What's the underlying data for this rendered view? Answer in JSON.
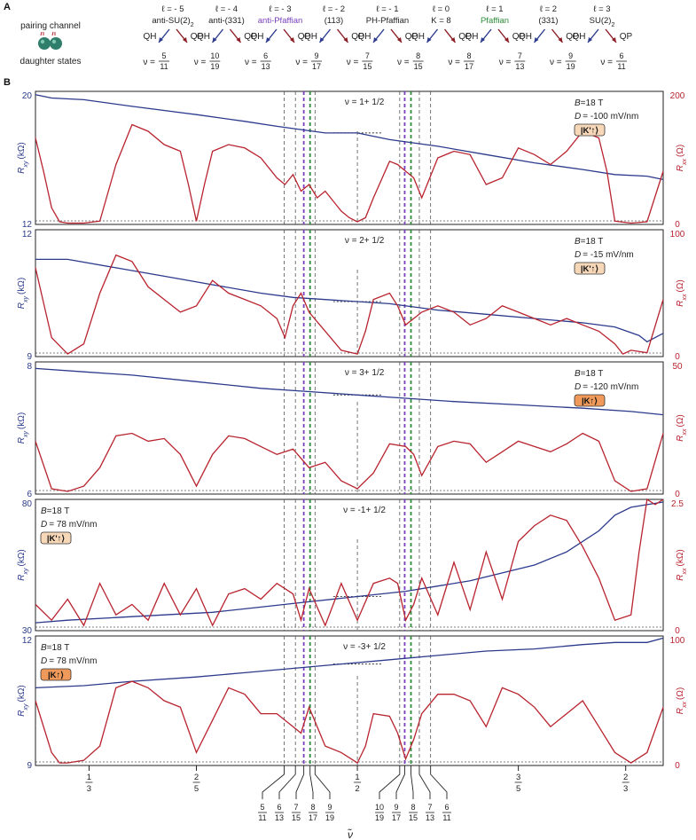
{
  "panel_a": {
    "label": "A",
    "pairing_channel": "pairing channel",
    "daughter_states": "daughter states",
    "qh": "QH",
    "qp": "QP",
    "channels": [
      {
        "l": "ℓ = - 5",
        "name": "anti-SU(2)",
        "sub": "2",
        "color": "#222222"
      },
      {
        "l": "ℓ = - 4",
        "name": "anti-(331)",
        "sub": "",
        "color": "#222222"
      },
      {
        "l": "ℓ = - 3",
        "name": "anti-Pfaffian",
        "sub": "",
        "color": "#7a3fbf"
      },
      {
        "l": "ℓ = - 2",
        "name": "(113)",
        "sub": "",
        "color": "#222222"
      },
      {
        "l": "ℓ = - 1",
        "name": "PH-Pfaffian",
        "sub": "",
        "color": "#222222"
      },
      {
        "l": "ℓ = 0",
        "name": "K = 8",
        "sub": "",
        "color": "#222222"
      },
      {
        "l": "ℓ = 1",
        "name": "Pfaffian",
        "sub": "",
        "color": "#2e8b3a"
      },
      {
        "l": "ℓ = 2",
        "name": "(331)",
        "sub": "",
        "color": "#222222"
      },
      {
        "l": "ℓ = 3",
        "name": "SU(2)",
        "sub": "2",
        "color": "#222222"
      }
    ],
    "daughters": [
      {
        "num": "5",
        "den": "11"
      },
      {
        "num": "10",
        "den": "19"
      },
      {
        "num": "6",
        "den": "13"
      },
      {
        "num": "9",
        "den": "17"
      },
      {
        "num": "7",
        "den": "15"
      },
      {
        "num": "8",
        "den": "15"
      },
      {
        "num": "8",
        "den": "17"
      },
      {
        "num": "7",
        "den": "13"
      },
      {
        "num": "9",
        "den": "19"
      },
      {
        "num": "6",
        "den": "11"
      }
    ],
    "nu": "ν ="
  },
  "panel_b_label": "B",
  "xaxis": {
    "symbol": "ν̃",
    "range": [
      0.3,
      0.69
    ],
    "major_ticks": [
      {
        "x": 0.3333,
        "num": "1",
        "den": "3"
      },
      {
        "x": 0.4,
        "num": "2",
        "den": "5"
      },
      {
        "x": 0.5,
        "num": "1",
        "den": "2"
      },
      {
        "x": 0.6,
        "num": "3",
        "den": "5"
      },
      {
        "x": 0.6667,
        "num": "2",
        "den": "3"
      }
    ],
    "fraction_lines": [
      {
        "x": 0.4545,
        "num": "5",
        "den": "11",
        "color": "#555555"
      },
      {
        "x": 0.4615,
        "num": "6",
        "den": "13",
        "color": "#555555"
      },
      {
        "x": 0.4667,
        "num": "7",
        "den": "15",
        "color": "#7a3fbf"
      },
      {
        "x": 0.4706,
        "num": "8",
        "den": "17",
        "color": "#2e8b3a"
      },
      {
        "x": 0.4737,
        "num": "9",
        "den": "19",
        "color": "#555555"
      },
      {
        "x": 0.5263,
        "num": "10",
        "den": "19",
        "color": "#555555"
      },
      {
        "x": 0.5294,
        "num": "9",
        "den": "17",
        "color": "#7a3fbf"
      },
      {
        "x": 0.5333,
        "num": "8",
        "den": "15",
        "color": "#2e8b3a"
      },
      {
        "x": 0.5385,
        "num": "7",
        "den": "13",
        "color": "#555555"
      },
      {
        "x": 0.5455,
        "num": "6",
        "den": "11",
        "color": "#555555"
      }
    ]
  },
  "chart_data": [
    {
      "type": "line",
      "title": "ν = 1+ 1/2",
      "field": "B =18 T",
      "field_label": "B",
      "field_value": "=18 T",
      "disp_label": "D",
      "disp_value": "= -100 mV/nm",
      "valley": "|K'↑⟩",
      "valley_fill": "#f6d7b8",
      "ylabel_left": "R",
      "ylabel_left_sub": "xy",
      "ylabel_left_unit": "(kΩ)",
      "ylabel_right": "R",
      "ylabel_right_sub": "xx",
      "ylabel_right_unit": "(Ω)",
      "ylim_left": [
        12,
        20
      ],
      "ylim_right": [
        0,
        200
      ],
      "left_ticks": [
        "20",
        "12"
      ],
      "right_ticks": [
        "200",
        "0"
      ],
      "info_side": "right",
      "series": [
        {
          "axis": "left",
          "color": "#2b3a8c",
          "x": [
            0.3,
            0.31,
            0.33,
            0.36,
            0.4,
            0.43,
            0.45,
            0.48,
            0.5,
            0.52,
            0.55,
            0.58,
            0.61,
            0.64,
            0.66,
            0.68,
            0.69
          ],
          "y": [
            19.8,
            19.6,
            19.5,
            19.1,
            18.6,
            18.2,
            17.9,
            17.5,
            17.5,
            17.1,
            16.7,
            16.2,
            15.7,
            15.3,
            15.0,
            14.9,
            14.7
          ]
        },
        {
          "axis": "right",
          "color": "#b8232e",
          "x": [
            0.3,
            0.305,
            0.31,
            0.315,
            0.32,
            0.33,
            0.34,
            0.35,
            0.36,
            0.37,
            0.38,
            0.39,
            0.395,
            0.4,
            0.405,
            0.41,
            0.42,
            0.43,
            0.44,
            0.45,
            0.455,
            0.46,
            0.465,
            0.47,
            0.475,
            0.48,
            0.49,
            0.495,
            0.5,
            0.505,
            0.51,
            0.52,
            0.525,
            0.53,
            0.535,
            0.54,
            0.55,
            0.56,
            0.57,
            0.58,
            0.59,
            0.6,
            0.61,
            0.62,
            0.63,
            0.64,
            0.65,
            0.655,
            0.66,
            0.67,
            0.68,
            0.69
          ],
          "y": [
            130,
            80,
            25,
            4,
            2,
            2,
            5,
            90,
            150,
            140,
            120,
            110,
            60,
            5,
            60,
            110,
            120,
            115,
            100,
            70,
            60,
            75,
            50,
            60,
            40,
            50,
            20,
            10,
            4,
            10,
            40,
            95,
            90,
            80,
            70,
            40,
            100,
            110,
            105,
            60,
            70,
            115,
            105,
            90,
            110,
            140,
            130,
            80,
            5,
            2,
            4,
            80
          ]
        }
      ],
      "plateau": {
        "x": [
          0.485,
          0.515
        ],
        "y": 17.5
      }
    },
    {
      "type": "line",
      "title": "ν = 2+ 1/2",
      "field": "B =18 T",
      "field_label": "B",
      "field_value": "=18 T",
      "disp_label": "D",
      "disp_value": "= -15 mV/nm",
      "valley": "|K'↑⟩",
      "valley_fill": "#f6d7b8",
      "ylabel_left": "R",
      "ylabel_left_sub": "xy",
      "ylabel_left_unit": "(kΩ)",
      "ylabel_right": "R",
      "ylabel_right_sub": "xx",
      "ylabel_right_unit": "(Ω)",
      "ylim_left": [
        9,
        12
      ],
      "ylim_right": [
        0,
        100
      ],
      "left_ticks": [
        "12",
        "9"
      ],
      "right_ticks": [
        "100",
        "0"
      ],
      "info_side": "right",
      "series": [
        {
          "axis": "left",
          "color": "#2b3a8c",
          "x": [
            0.3,
            0.32,
            0.35,
            0.38,
            0.41,
            0.44,
            0.46,
            0.48,
            0.5,
            0.52,
            0.55,
            0.58,
            0.61,
            0.64,
            0.66,
            0.675,
            0.68,
            0.69
          ],
          "y": [
            11.3,
            11.3,
            11.1,
            10.9,
            10.7,
            10.5,
            10.4,
            10.35,
            10.3,
            10.25,
            10.1,
            10.0,
            9.9,
            9.8,
            9.7,
            9.5,
            9.35,
            9.55
          ]
        },
        {
          "axis": "right",
          "color": "#b8232e",
          "x": [
            0.3,
            0.31,
            0.32,
            0.33,
            0.34,
            0.35,
            0.36,
            0.37,
            0.38,
            0.39,
            0.4,
            0.41,
            0.42,
            0.43,
            0.44,
            0.45,
            0.455,
            0.46,
            0.465,
            0.47,
            0.48,
            0.49,
            0.5,
            0.505,
            0.51,
            0.52,
            0.525,
            0.53,
            0.535,
            0.54,
            0.55,
            0.56,
            0.57,
            0.58,
            0.59,
            0.6,
            0.61,
            0.62,
            0.63,
            0.64,
            0.65,
            0.66,
            0.665,
            0.67,
            0.68,
            0.69
          ],
          "y": [
            70,
            15,
            2,
            10,
            50,
            80,
            75,
            55,
            45,
            35,
            40,
            60,
            50,
            45,
            40,
            30,
            15,
            40,
            50,
            35,
            20,
            5,
            2,
            20,
            45,
            50,
            40,
            25,
            30,
            35,
            40,
            35,
            25,
            30,
            40,
            35,
            30,
            25,
            30,
            25,
            20,
            10,
            2,
            5,
            3,
            45
          ]
        }
      ],
      "plateau": {
        "x": [
          0.485,
          0.515
        ],
        "y": 10.3
      }
    },
    {
      "type": "line",
      "title": "ν = 3+ 1/2",
      "field": "B =18 T",
      "field_label": "B",
      "field_value": "=18 T",
      "disp_label": "D",
      "disp_value": "= -120 mV/nm",
      "valley": "|K↑⟩",
      "valley_fill": "#ef9a5a",
      "ylabel_left": "R",
      "ylabel_left_sub": "xy",
      "ylabel_left_unit": "(kΩ)",
      "ylabel_right": "R",
      "ylabel_right_sub": "xx",
      "ylabel_right_unit": "(Ω)",
      "ylim_left": [
        6,
        8
      ],
      "ylim_right": [
        0,
        50
      ],
      "left_ticks": [
        "8",
        "6"
      ],
      "right_ticks": [
        "50",
        "0"
      ],
      "info_side": "right",
      "series": [
        {
          "axis": "left",
          "color": "#2b3a8c",
          "x": [
            0.3,
            0.33,
            0.36,
            0.4,
            0.44,
            0.47,
            0.5,
            0.53,
            0.56,
            0.6,
            0.64,
            0.67,
            0.69
          ],
          "y": [
            7.9,
            7.85,
            7.8,
            7.7,
            7.6,
            7.55,
            7.5,
            7.45,
            7.4,
            7.35,
            7.3,
            7.25,
            7.2
          ]
        },
        {
          "axis": "right",
          "color": "#b8232e",
          "x": [
            0.3,
            0.31,
            0.32,
            0.33,
            0.34,
            0.35,
            0.36,
            0.37,
            0.38,
            0.39,
            0.4,
            0.41,
            0.42,
            0.43,
            0.44,
            0.45,
            0.46,
            0.47,
            0.48,
            0.49,
            0.5,
            0.51,
            0.52,
            0.53,
            0.535,
            0.54,
            0.55,
            0.56,
            0.57,
            0.58,
            0.59,
            0.6,
            0.61,
            0.62,
            0.63,
            0.64,
            0.65,
            0.66,
            0.67,
            0.68,
            0.69
          ],
          "y": [
            20,
            2,
            1,
            3,
            10,
            22,
            23,
            20,
            21,
            15,
            3,
            15,
            22,
            21,
            18,
            15,
            17,
            10,
            12,
            5,
            2,
            8,
            19,
            18,
            15,
            7,
            18,
            20,
            19,
            12,
            16,
            20,
            18,
            16,
            19,
            23,
            20,
            5,
            1,
            2,
            23
          ]
        }
      ],
      "plateau": {
        "x": [
          0.485,
          0.515
        ],
        "y": 7.5
      }
    },
    {
      "type": "line",
      "title": "ν = -1+ 1/2",
      "field": "B =18 T",
      "field_label": "B",
      "field_value": "=18 T",
      "disp_label": "D",
      "disp_value": "= 78 mV/nm",
      "valley": "|K'↑⟩",
      "valley_fill": "#f6d7b8",
      "ylabel_left": "R",
      "ylabel_left_sub": "xy",
      "ylabel_left_unit": "(kΩ)",
      "ylabel_right": "R",
      "ylabel_right_sub": "xx",
      "ylabel_right_unit": "(kΩ)",
      "ylim_left": [
        30,
        80
      ],
      "ylim_right": [
        0,
        2.5
      ],
      "left_ticks": [
        "80",
        "30"
      ],
      "right_ticks": [
        "2.5",
        "0"
      ],
      "info_side": "left",
      "series": [
        {
          "axis": "left",
          "color": "#2b3a8c",
          "x": [
            0.3,
            0.32,
            0.35,
            0.38,
            0.41,
            0.44,
            0.47,
            0.5,
            0.53,
            0.55,
            0.57,
            0.59,
            0.61,
            0.63,
            0.65,
            0.66,
            0.67,
            0.68,
            0.69
          ],
          "y": [
            33,
            34,
            35,
            36,
            37,
            39,
            41,
            43,
            45,
            47,
            49,
            52,
            55,
            60,
            68,
            74,
            77,
            78,
            79
          ]
        },
        {
          "axis": "right",
          "color": "#b8232e",
          "x": [
            0.3,
            0.31,
            0.32,
            0.33,
            0.34,
            0.35,
            0.36,
            0.37,
            0.38,
            0.39,
            0.4,
            0.41,
            0.42,
            0.43,
            0.44,
            0.45,
            0.46,
            0.465,
            0.47,
            0.48,
            0.49,
            0.5,
            0.51,
            0.52,
            0.525,
            0.53,
            0.535,
            0.54,
            0.55,
            0.56,
            0.57,
            0.58,
            0.59,
            0.6,
            0.61,
            0.62,
            0.63,
            0.64,
            0.65,
            0.66,
            0.67,
            0.675,
            0.68,
            0.685,
            0.69
          ],
          "y": [
            0.5,
            0.2,
            0.6,
            0.1,
            0.9,
            0.3,
            0.5,
            0.2,
            0.9,
            0.3,
            0.8,
            0.1,
            0.7,
            0.8,
            0.6,
            0.9,
            0.7,
            0.2,
            0.8,
            0.1,
            0.9,
            0.2,
            0.9,
            1.0,
            0.9,
            0.2,
            0.5,
            1.0,
            0.3,
            1.3,
            0.4,
            1.5,
            0.6,
            1.7,
            2.0,
            2.2,
            2.1,
            1.6,
            1.0,
            0.2,
            0.3,
            1.5,
            2.5,
            2.4,
            2.5
          ]
        }
      ],
      "plateau": {
        "x": [
          0.485,
          0.515
        ],
        "y": 43
      }
    },
    {
      "type": "line",
      "title": "ν = -3+ 1/2",
      "field": "B =18 T",
      "field_label": "B",
      "field_value": "=18 T",
      "disp_label": "D",
      "disp_value": "= 78 mV/nm",
      "valley": "|K↑⟩",
      "valley_fill": "#ef9a5a",
      "ylabel_left": "R",
      "ylabel_left_sub": "xy",
      "ylabel_left_unit": "(kΩ)",
      "ylabel_right": "R",
      "ylabel_right_sub": "xx",
      "ylabel_right_unit": "(Ω)",
      "ylim_left": [
        9,
        12
      ],
      "ylim_right": [
        0,
        100
      ],
      "left_ticks": [
        "12",
        "9"
      ],
      "right_ticks": [
        "100",
        "0"
      ],
      "info_side": "left",
      "series": [
        {
          "axis": "left",
          "color": "#2b3a8c",
          "x": [
            0.3,
            0.33,
            0.36,
            0.4,
            0.43,
            0.46,
            0.49,
            0.52,
            0.55,
            0.58,
            0.61,
            0.64,
            0.66,
            0.68,
            0.69
          ],
          "y": [
            10.8,
            10.85,
            10.95,
            11.05,
            11.15,
            11.25,
            11.35,
            11.45,
            11.55,
            11.65,
            11.7,
            11.8,
            11.85,
            11.85,
            11.95
          ]
        },
        {
          "axis": "right",
          "color": "#b8232e",
          "x": [
            0.3,
            0.31,
            0.315,
            0.32,
            0.33,
            0.34,
            0.35,
            0.36,
            0.37,
            0.38,
            0.39,
            0.4,
            0.41,
            0.42,
            0.43,
            0.44,
            0.45,
            0.46,
            0.465,
            0.47,
            0.48,
            0.49,
            0.5,
            0.505,
            0.51,
            0.52,
            0.525,
            0.53,
            0.535,
            0.54,
            0.55,
            0.56,
            0.57,
            0.58,
            0.59,
            0.6,
            0.61,
            0.62,
            0.63,
            0.64,
            0.65,
            0.66,
            0.67,
            0.68,
            0.69
          ],
          "y": [
            50,
            10,
            2,
            2,
            4,
            15,
            60,
            65,
            60,
            50,
            45,
            10,
            35,
            60,
            55,
            40,
            40,
            30,
            25,
            45,
            15,
            10,
            2,
            15,
            40,
            38,
            25,
            5,
            20,
            40,
            55,
            55,
            50,
            30,
            60,
            55,
            45,
            30,
            40,
            50,
            30,
            10,
            2,
            10,
            45
          ]
        }
      ],
      "plateau": {
        "x": [
          0.485,
          0.515
        ],
        "y": 11.35
      }
    }
  ]
}
